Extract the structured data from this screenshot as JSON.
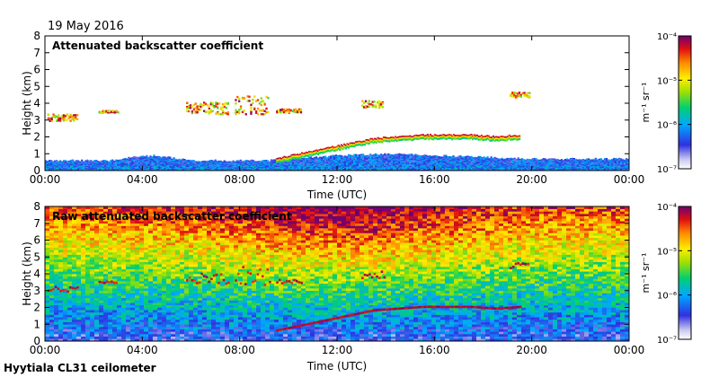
{
  "date": "19 May 2016",
  "footer": "Hyytiala CL31 ceilometer",
  "chart_data": [
    {
      "type": "heatmap",
      "title": "Attenuated backscatter coefficient",
      "xlabel": "Time (UTC)",
      "ylabel": "Height (km)",
      "xlim": [
        0,
        24
      ],
      "ylim": [
        0,
        8
      ],
      "xticks": [
        "00:00",
        "04:00",
        "08:00",
        "12:00",
        "16:00",
        "20:00",
        "00:00"
      ],
      "yticks": [
        "0",
        "1",
        "2",
        "3",
        "4",
        "5",
        "6",
        "7",
        "8"
      ],
      "features": {
        "boundary_layer_top_km": [
          [
            0,
            0.6
          ],
          [
            3,
            0.6
          ],
          [
            3.5,
            0.8
          ],
          [
            4.5,
            0.9
          ],
          [
            6,
            0.6
          ],
          [
            9,
            0.6
          ],
          [
            10,
            0.7
          ],
          [
            12,
            0.9
          ],
          [
            14,
            1.0
          ],
          [
            16,
            0.9
          ],
          [
            20,
            0.7
          ],
          [
            24,
            0.7
          ]
        ],
        "low_cloud_layer": [
          [
            9.5,
            0.6
          ],
          [
            10.5,
            0.9
          ],
          [
            11.5,
            1.2
          ],
          [
            12.5,
            1.5
          ],
          [
            13.5,
            1.8
          ],
          [
            14.5,
            1.9
          ],
          [
            15.5,
            2.0
          ],
          [
            16.5,
            2.0
          ],
          [
            17.5,
            2.0
          ],
          [
            18.5,
            1.9
          ],
          [
            19.5,
            2.0
          ]
        ],
        "elevated_cloud_segments": [
          [
            0.1,
            1.3,
            3.0,
            3.4
          ],
          [
            2.2,
            3.0,
            3.5,
            3.6
          ],
          [
            5.8,
            7.5,
            3.4,
            4.1
          ],
          [
            7.8,
            9.2,
            3.4,
            4.5
          ],
          [
            9.5,
            10.5,
            3.5,
            3.7
          ],
          [
            13.0,
            13.9,
            3.8,
            4.2
          ],
          [
            19.1,
            19.9,
            4.4,
            4.7
          ]
        ]
      },
      "colorbar": {
        "label": "m⁻¹ sr⁻¹",
        "ticks": [
          "10⁻⁴",
          "10⁻⁵",
          "10⁻⁶",
          "10⁻⁷"
        ],
        "range_exponent": [
          -7,
          -4
        ]
      }
    },
    {
      "type": "heatmap",
      "title": "Raw attenuated backscatter coefficient",
      "xlabel": "Time (UTC)",
      "ylabel": "Height (km)",
      "xlim": [
        0,
        24
      ],
      "ylim": [
        0,
        8
      ],
      "xticks": [
        "00:00",
        "04:00",
        "08:00",
        "12:00",
        "16:00",
        "20:00",
        "00:00"
      ],
      "yticks": [
        "0",
        "1",
        "2",
        "3",
        "4",
        "5",
        "6",
        "7",
        "8"
      ],
      "features": {
        "noise_increases_with_height": true,
        "daytime_noise_peak_utc": [
          9,
          15
        ]
      },
      "colorbar": {
        "label": "m⁻¹ sr⁻¹",
        "ticks": [
          "10⁻⁴",
          "10⁻⁵",
          "10⁻⁶",
          "10⁻⁷"
        ],
        "range_exponent": [
          -7,
          -4
        ]
      }
    }
  ]
}
